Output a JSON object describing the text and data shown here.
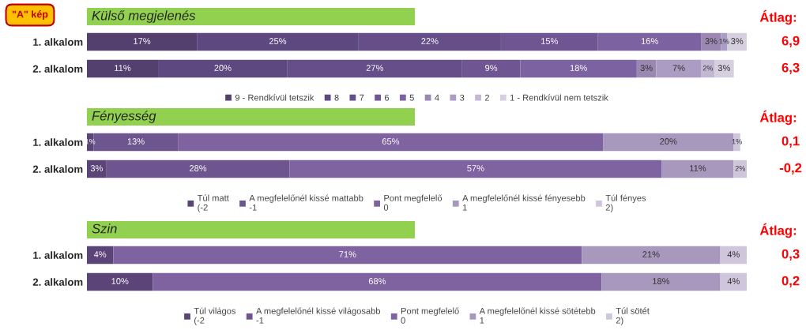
{
  "chart_data": [
    {
      "type": "bar",
      "orientation": "horizontal",
      "stacked": true,
      "title": "Külső megjelenés",
      "categories": [
        "1. alkalom",
        "2. alkalom"
      ],
      "legend": "bottom",
      "tick_labels": "y",
      "annotations": [
        "\"A\" kép",
        "Átlag:",
        "6,9",
        "6,3"
      ],
      "series": [
        {
          "name": "9 - Rendkívül tetszik",
          "color": "#54406f",
          "values": [
            17,
            11
          ],
          "value_labels": [
            "17%",
            "11%"
          ]
        },
        {
          "name": "8",
          "color": "#5e4880",
          "values": [
            25,
            20
          ],
          "value_labels": [
            "25%",
            "20%"
          ]
        },
        {
          "name": "7",
          "color": "#664f88",
          "values": [
            22,
            27
          ],
          "value_labels": [
            "22%",
            "27%"
          ]
        },
        {
          "name": "6",
          "color": "#6f5592",
          "values": [
            15,
            9
          ],
          "value_labels": [
            "15%",
            "9%"
          ]
        },
        {
          "name": "5",
          "color": "#7c62a0",
          "values": [
            16,
            18
          ],
          "value_labels": [
            "16%",
            "18%"
          ]
        },
        {
          "name": "4",
          "color": "#9a88b3",
          "values": [
            3,
            3
          ],
          "value_labels": [
            "3%",
            "3%"
          ]
        },
        {
          "name": "3",
          "color": "#ab9cc3",
          "values": [
            1,
            7
          ],
          "value_labels": [
            "1%",
            "7%"
          ]
        },
        {
          "name": "2",
          "color": "#c3b8d3",
          "values": [
            0,
            2
          ],
          "value_labels": [
            null,
            "2%"
          ]
        },
        {
          "name": "1 - Rendkívül nem tetszik",
          "color": "#d6cfe0",
          "values": [
            3,
            3
          ],
          "value_labels": [
            "3%",
            "3%"
          ]
        }
      ]
    },
    {
      "type": "bar",
      "orientation": "horizontal",
      "stacked": true,
      "title": "Fényesség",
      "categories": [
        "1. alkalom",
        "2. alkalom"
      ],
      "legend": "bottom",
      "tick_labels": "y",
      "annotations": [
        "Átlag:",
        "0,1",
        "-0,2"
      ],
      "series": [
        {
          "name": "Túl matt\n(-2",
          "color": "#5a4478",
          "values": [
            1,
            3
          ],
          "value_labels": [
            "1%",
            "3%"
          ]
        },
        {
          "name": "A megfelelőnél kissé mattabb\n-1",
          "color": "#6d5690",
          "values": [
            13,
            28
          ],
          "value_labels": [
            "13%",
            "28%"
          ]
        },
        {
          "name": "Pont megfelelő\n0",
          "color": "#7f63a0",
          "values": [
            65,
            57
          ],
          "value_labels": [
            "65%",
            "57%"
          ]
        },
        {
          "name": "A megfelelőnél kissé fényesebb\n1",
          "color": "#a898bd",
          "values": [
            20,
            11
          ],
          "value_labels": [
            "20%",
            "11%"
          ]
        },
        {
          "name": "Túl fényes\n2)",
          "color": "#cfc6dc",
          "values": [
            1,
            2
          ],
          "value_labels": [
            "1%",
            "2%"
          ]
        }
      ]
    },
    {
      "type": "bar",
      "orientation": "horizontal",
      "stacked": true,
      "title": "Szin",
      "categories": [
        "1. alkalom",
        "2. alkalom"
      ],
      "legend": "bottom",
      "tick_labels": "y",
      "annotations": [
        "Átlag:",
        "0,3",
        "0,2"
      ],
      "series": [
        {
          "name": "Túl világos\n(-2",
          "color": "#5a4478",
          "values": [
            4,
            10
          ],
          "value_labels": [
            "4%",
            "10%"
          ]
        },
        {
          "name": "A megfelelőnél kissé világosabb\n-1",
          "color": "#6d5690",
          "values": [
            0,
            0
          ],
          "value_labels": [
            null,
            null
          ]
        },
        {
          "name": "Pont megfelelő\n0",
          "color": "#7f63a0",
          "values": [
            71,
            68
          ],
          "value_labels": [
            "71%",
            "68%"
          ]
        },
        {
          "name": "A megfelelőnél kissé sötétebb\n1",
          "color": "#a898bd",
          "values": [
            21,
            18
          ],
          "value_labels": [
            "21%",
            "18%"
          ]
        },
        {
          "name": "Túl sötét\n2)",
          "color": "#cfc6dc",
          "values": [
            4,
            4
          ],
          "value_labels": [
            "4%",
            "4%"
          ]
        }
      ]
    }
  ]
}
